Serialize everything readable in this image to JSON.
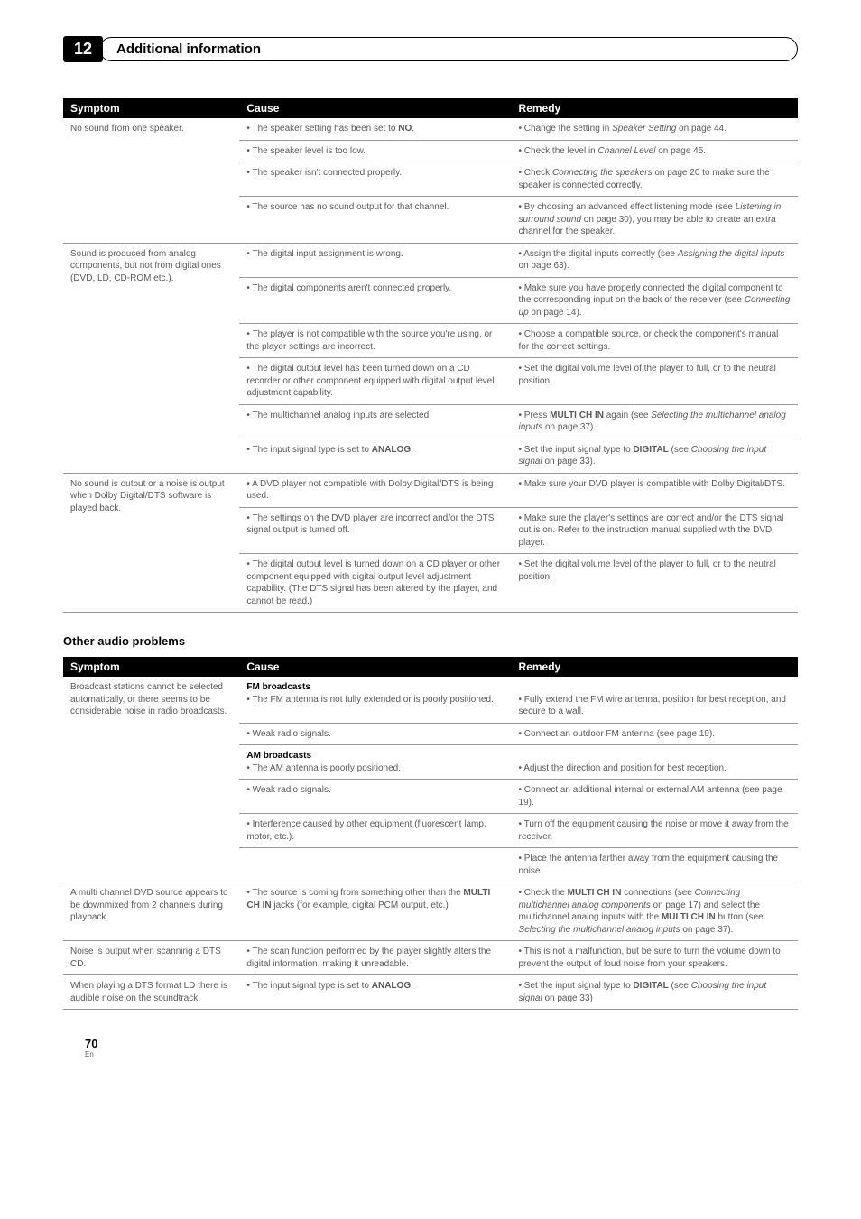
{
  "chapter": {
    "number": "12",
    "title": "Additional information"
  },
  "table1": {
    "headers": [
      "Symptom",
      "Cause",
      "Remedy"
    ],
    "rows": [
      {
        "symptom": "No sound from one speaker.",
        "cause_html": "• The speaker setting has been set to <b>NO</b>.",
        "remedy_html": "• Change the setting in <i>Speaker Setting</i> on page 44."
      },
      {
        "symptom": "",
        "cause_html": "• The speaker level is too low.",
        "remedy_html": "• Check the level in <i>Channel Level</i> on page 45."
      },
      {
        "symptom": "",
        "cause_html": "• The speaker isn't connected properly.",
        "remedy_html": "• Check <i>Connecting the speakers</i> on page 20 to make sure the speaker is connected correctly."
      },
      {
        "symptom": "",
        "cause_html": "• The source has no sound output for that channel.",
        "remedy_html": "• By choosing an advanced effect listening mode (see <i>Listening in surround sound</i> on page 30), you may be able to create an extra channel for the speaker."
      },
      {
        "symptom": "Sound is produced from analog components, but not from digital ones (DVD, LD, CD-ROM etc.).",
        "cause_html": "• The digital input assignment is wrong.",
        "remedy_html": "• Assign the digital inputs correctly (see <i>Assigning the digital inputs</i> on page 63)."
      },
      {
        "symptom": "",
        "cause_html": "• The digital components aren't connected properly.",
        "remedy_html": "• Make sure you have properly connected the digital component to the corresponding input on the back of the receiver (see <i>Connecting up</i> on page 14)."
      },
      {
        "symptom": "",
        "cause_html": "• The player is not compatible with the source you're using, or the player settings are incorrect.",
        "remedy_html": "• Choose a compatible source, or check the component's manual for the correct settings."
      },
      {
        "symptom": "",
        "cause_html": "• The digital output level has been turned down on a CD recorder or other component equipped with digital output level adjustment capability.",
        "remedy_html": "• Set the digital volume level of the player to full, or to the neutral position."
      },
      {
        "symptom": "",
        "cause_html": "• The multichannel analog inputs are selected.",
        "remedy_html": "• Press <b>MULTI CH IN</b> again (see <i>Selecting the multichannel analog inputs</i> on page 37)."
      },
      {
        "symptom": "",
        "cause_html": "• The input signal type is set to <b>ANALOG</b>.",
        "remedy_html": "• Set the input signal type to <b>DIGITAL</b> (see <i>Choosing the input signal</i> on page 33)."
      },
      {
        "symptom": "No sound is output or a noise is output when Dolby Digital/DTS software is played back.",
        "cause_html": "• A DVD player not compatible with Dolby Digital/DTS is being used.",
        "remedy_html": "• Make sure your DVD player is compatible with Dolby Digital/DTS."
      },
      {
        "symptom": "",
        "cause_html": "• The settings on the DVD player are incorrect and/or the DTS signal output is turned off.",
        "remedy_html": "• Make sure the player's settings are correct and/or the DTS signal out is on. Refer to the instruction manual supplied with the DVD player."
      },
      {
        "symptom": "",
        "cause_html": "• The digital output level is turned down on a CD player or other component equipped with digital output level adjustment capability. (The DTS signal has been altered by the player, and cannot be read.)",
        "remedy_html": "• Set the digital volume level of the player to full, or to the neutral position."
      }
    ]
  },
  "section2_heading": "Other audio problems",
  "table2": {
    "headers": [
      "Symptom",
      "Cause",
      "Remedy"
    ],
    "rows": [
      {
        "symptom": "Broadcast stations cannot be selected automatically, or there seems to be considerable noise in radio broadcasts.",
        "cause_html": "<b style='color:#000'>FM broadcasts</b><br>• The FM antenna is not fully extended or is poorly positioned.",
        "remedy_html": "<br>• Fully extend the FM wire antenna, position for best reception, and secure to a wall."
      },
      {
        "symptom": "",
        "cause_html": "• Weak radio signals.",
        "remedy_html": "• Connect an outdoor FM antenna (see page 19)."
      },
      {
        "symptom": "",
        "cause_html": "<b style='color:#000'>AM broadcasts</b><br>• The AM antenna is poorly positioned.",
        "remedy_html": "<br>• Adjust the direction and position for best reception."
      },
      {
        "symptom": "",
        "cause_html": "• Weak radio signals.",
        "remedy_html": "• Connect an additional internal or external AM antenna (see page 19)."
      },
      {
        "symptom": "",
        "cause_html": "• Interference caused by other equipment (fluorescent lamp, motor, etc.).",
        "remedy_html": "• Turn off the equipment causing the noise or move it away from the receiver."
      },
      {
        "symptom": "",
        "cause_html": "",
        "remedy_html": "• Place the antenna farther away from the equipment causing the noise."
      },
      {
        "symptom": "A multi channel DVD source appears to be downmixed from 2 channels during playback.",
        "cause_html": "• The source is coming from something other than the <b>MULTI CH IN</b> jacks (for example, digital PCM output, etc.)",
        "remedy_html": "• Check the <b>MULTI CH IN</b> connections (see <i>Connecting multichannel analog components</i> on page 17) and select the multichannel analog inputs with the <b>MULTI CH IN</b> button (see <i>Selecting the multichannel analog inputs</i> on page 37)."
      },
      {
        "symptom": "Noise is output when scanning a DTS CD.",
        "cause_html": "• The scan function performed by the player slightly alters the digital information, making it unreadable.",
        "remedy_html": "• This is not a malfunction, but be sure to turn the volume down to prevent the output of loud noise from your speakers."
      },
      {
        "symptom": "When playing a DTS format LD there is audible noise on the soundtrack.",
        "cause_html": "• The input signal type is set to <b>ANALOG</b>.",
        "remedy_html": "• Set the input signal type to <b>DIGITAL</b> (see <i>Choosing the input signal</i> on page 33)"
      }
    ]
  },
  "footer": {
    "page": "70",
    "lang": "En"
  }
}
